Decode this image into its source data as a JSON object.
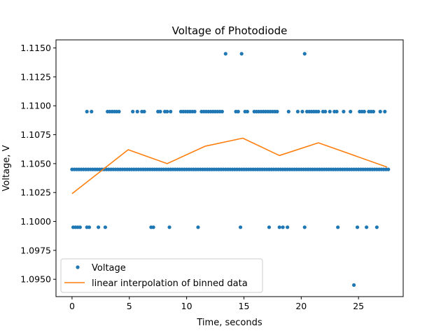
{
  "chart_data": {
    "type": "scatter",
    "title": "Voltage of Photodiode",
    "xlabel": "Time, seconds",
    "ylabel": "Voltage, V",
    "xlim": [
      -1.4,
      28.9
    ],
    "ylim": [
      1.0935,
      1.1157
    ],
    "xticks": [
      0,
      5,
      10,
      15,
      20,
      25
    ],
    "yticks": [
      1.095,
      1.0975,
      1.1,
      1.1025,
      1.105,
      1.1075,
      1.11,
      1.1125,
      1.115
    ],
    "ytick_labels": [
      "1.0950",
      "1.0975",
      "1.1000",
      "1.1025",
      "1.1050",
      "1.1075",
      "1.1100",
      "1.1125",
      "1.1150"
    ],
    "legend_position": "lower left",
    "grid": false,
    "colors": {
      "scatter": "#1f77b4",
      "line": "#ff7f0e"
    },
    "series": [
      {
        "name": "Voltage",
        "kind": "scatter",
        "x": [
          0.0,
          0.2,
          0.4,
          0.6,
          0.8,
          1.0,
          1.2,
          1.4,
          1.6,
          1.8,
          2.0,
          2.2,
          2.4,
          2.6,
          2.8,
          3.0,
          3.2,
          3.4,
          3.6,
          3.8,
          4.0,
          4.2,
          4.4,
          4.6,
          4.8,
          5.0,
          5.2,
          5.4,
          5.6,
          5.8,
          6.0,
          6.2,
          6.4,
          6.6,
          6.8,
          7.0,
          7.2,
          7.4,
          7.6,
          7.8,
          8.0,
          8.2,
          8.4,
          8.6,
          8.8,
          9.0,
          9.2,
          9.4,
          9.6,
          9.8,
          10.0,
          10.2,
          10.4,
          10.6,
          10.8,
          11.0,
          11.2,
          11.4,
          11.6,
          11.8,
          12.0,
          12.2,
          12.4,
          12.6,
          12.8,
          13.0,
          13.2,
          13.4,
          13.6,
          13.8,
          14.0,
          14.2,
          14.4,
          14.6,
          14.8,
          15.0,
          15.2,
          15.4,
          15.6,
          15.8,
          16.0,
          16.2,
          16.4,
          16.6,
          16.8,
          17.0,
          17.2,
          17.4,
          17.6,
          17.8,
          18.0,
          18.2,
          18.4,
          18.6,
          18.8,
          19.0,
          19.2,
          19.4,
          19.6,
          19.8,
          20.0,
          20.2,
          20.4,
          20.6,
          20.8,
          21.0,
          21.2,
          21.4,
          21.6,
          21.8,
          22.0,
          22.2,
          22.4,
          22.6,
          22.8,
          23.0,
          23.2,
          23.4,
          23.6,
          23.8,
          24.0,
          24.2,
          24.4,
          24.6,
          24.8,
          25.0,
          25.2,
          25.4,
          25.6,
          25.8,
          26.0,
          26.2,
          26.4,
          26.6,
          26.8,
          27.0,
          27.2,
          27.4,
          27.6,
          0.1,
          0.3,
          0.5,
          0.7,
          1.3,
          1.5,
          2.3,
          2.9,
          6.9,
          7.1,
          8.5,
          11.0,
          14.7,
          17.2,
          18.1,
          18.4,
          18.8,
          20.3,
          23.2,
          24.6,
          24.9,
          25.7,
          26.6,
          1.3,
          1.7,
          3.1,
          3.3,
          3.5,
          3.7,
          3.9,
          4.1,
          5.3,
          5.7,
          6.1,
          6.3,
          7.5,
          7.7,
          8.1,
          8.3,
          8.6,
          9.5,
          9.7,
          9.9,
          10.1,
          10.3,
          10.5,
          10.7,
          11.3,
          11.5,
          11.7,
          11.9,
          12.1,
          12.3,
          12.5,
          12.7,
          12.9,
          13.1,
          14.3,
          14.5,
          15.1,
          15.3,
          15.9,
          16.1,
          16.3,
          16.5,
          16.7,
          16.9,
          17.1,
          17.3,
          17.5,
          17.7,
          17.9,
          18.9,
          19.7,
          20.1,
          20.5,
          20.7,
          20.9,
          21.1,
          21.3,
          21.5,
          21.9,
          22.1,
          22.5,
          22.9,
          23.1,
          23.7,
          24.3,
          25.1,
          25.3,
          25.5,
          25.9,
          26.1,
          26.3,
          26.9,
          27.3,
          13.4,
          14.8,
          20.3
        ],
        "y": [
          1.1045,
          1.1045,
          1.1045,
          1.1045,
          1.1045,
          1.1045,
          1.1045,
          1.1045,
          1.1045,
          1.1045,
          1.1045,
          1.1045,
          1.1045,
          1.1045,
          1.1045,
          1.1045,
          1.1045,
          1.1045,
          1.1045,
          1.1045,
          1.1045,
          1.1045,
          1.1045,
          1.1045,
          1.1045,
          1.1045,
          1.1045,
          1.1045,
          1.1045,
          1.1045,
          1.1045,
          1.1045,
          1.1045,
          1.1045,
          1.1045,
          1.1045,
          1.1045,
          1.1045,
          1.1045,
          1.1045,
          1.1045,
          1.1045,
          1.1045,
          1.1045,
          1.1045,
          1.1045,
          1.1045,
          1.1045,
          1.1045,
          1.1045,
          1.1045,
          1.1045,
          1.1045,
          1.1045,
          1.1045,
          1.1045,
          1.1045,
          1.1045,
          1.1045,
          1.1045,
          1.1045,
          1.1045,
          1.1045,
          1.1045,
          1.1045,
          1.1045,
          1.1045,
          1.1045,
          1.1045,
          1.1045,
          1.1045,
          1.1045,
          1.1045,
          1.1045,
          1.1045,
          1.1045,
          1.1045,
          1.1045,
          1.1045,
          1.1045,
          1.1045,
          1.1045,
          1.1045,
          1.1045,
          1.1045,
          1.1045,
          1.1045,
          1.1045,
          1.1045,
          1.1045,
          1.1045,
          1.1045,
          1.1045,
          1.1045,
          1.1045,
          1.1045,
          1.1045,
          1.1045,
          1.1045,
          1.1045,
          1.1045,
          1.1045,
          1.1045,
          1.1045,
          1.1045,
          1.1045,
          1.1045,
          1.1045,
          1.1045,
          1.1045,
          1.1045,
          1.1045,
          1.1045,
          1.1045,
          1.1045,
          1.1045,
          1.1045,
          1.1045,
          1.1045,
          1.1045,
          1.1045,
          1.1045,
          1.1045,
          1.1045,
          1.1045,
          1.1045,
          1.1045,
          1.1045,
          1.1045,
          1.1045,
          1.1045,
          1.1045,
          1.1045,
          1.1045,
          1.1045,
          1.1045,
          1.1045,
          1.1045,
          1.1045,
          1.0995,
          1.0995,
          1.0995,
          1.0995,
          1.0995,
          1.0995,
          1.0995,
          1.0995,
          1.0995,
          1.0995,
          1.0995,
          1.0995,
          1.0995,
          1.0995,
          1.0995,
          1.0995,
          1.0995,
          1.0995,
          1.0995,
          1.0945,
          1.0995,
          1.0995,
          1.0995,
          1.1095,
          1.1095,
          1.1095,
          1.1095,
          1.1095,
          1.1095,
          1.1095,
          1.1095,
          1.1095,
          1.1095,
          1.1095,
          1.1095,
          1.1095,
          1.1095,
          1.1095,
          1.1095,
          1.1095,
          1.1095,
          1.1095,
          1.1095,
          1.1095,
          1.1095,
          1.1095,
          1.1095,
          1.1095,
          1.1095,
          1.1095,
          1.1095,
          1.1095,
          1.1095,
          1.1095,
          1.1095,
          1.1095,
          1.1095,
          1.1095,
          1.1095,
          1.1095,
          1.1095,
          1.1095,
          1.1095,
          1.1095,
          1.1095,
          1.1095,
          1.1095,
          1.1095,
          1.1095,
          1.1095,
          1.1095,
          1.1095,
          1.1095,
          1.1095,
          1.1095,
          1.1095,
          1.1095,
          1.1095,
          1.1095,
          1.1095,
          1.1095,
          1.1095,
          1.1095,
          1.1095,
          1.1095,
          1.1095,
          1.1095,
          1.1095,
          1.1095,
          1.1095,
          1.1095,
          1.1095,
          1.1095,
          1.1095,
          1.1095,
          1.1095,
          1.1145,
          1.1145,
          1.1145
        ]
      },
      {
        "name": "linear interpolation of binned data",
        "kind": "line",
        "x": [
          0.0,
          4.9,
          8.3,
          11.6,
          14.9,
          18.1,
          21.5,
          27.5
        ],
        "y": [
          1.1024,
          1.1062,
          1.105,
          1.1065,
          1.1072,
          1.1057,
          1.1068,
          1.1047
        ]
      }
    ]
  }
}
